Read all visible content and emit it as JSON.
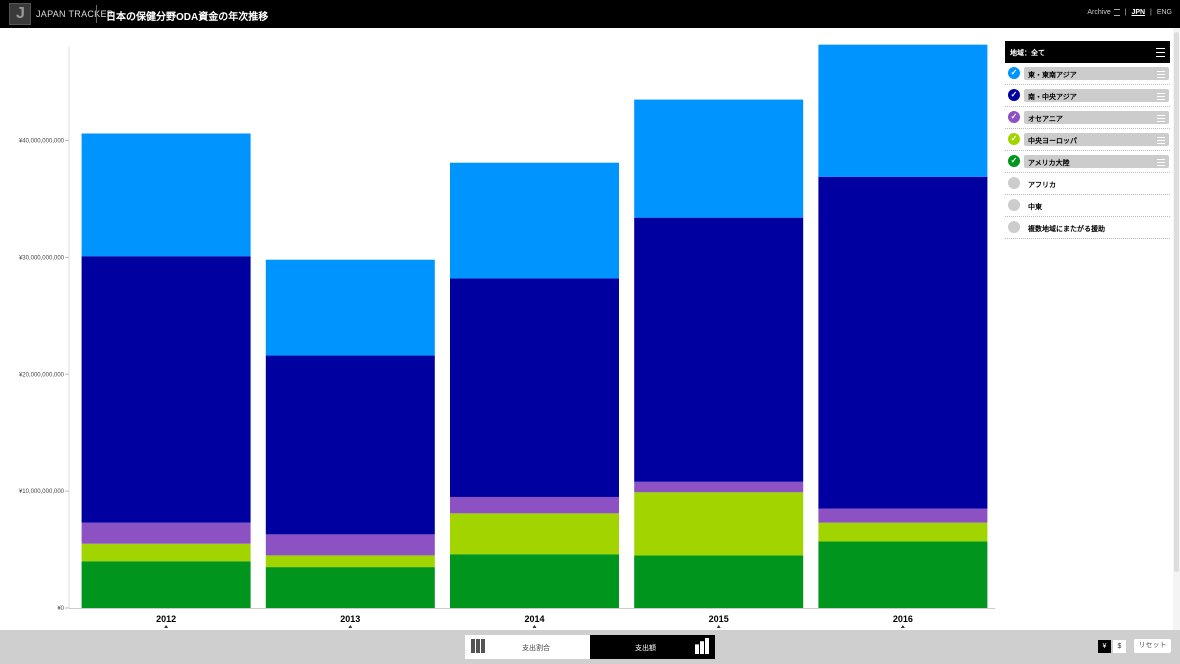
{
  "header": {
    "logo_letter": "J",
    "brand": "JAPAN TRACKER",
    "title": "日本の保健分野ODA資金の年次推移",
    "archive": "Archive",
    "lang_jpn": "JPN",
    "lang_eng": "ENG",
    "sep": "|"
  },
  "panel": {
    "title": "地域：全て",
    "regions": [
      {
        "label": "東・東南アジア",
        "selected": true,
        "color": "#0094ff"
      },
      {
        "label": "南・中央アジア",
        "selected": true,
        "color": "#0000a0"
      },
      {
        "label": "オセアニア",
        "selected": true,
        "color": "#8c52c4"
      },
      {
        "label": "中央ヨーロッパ",
        "selected": true,
        "color": "#a2d400"
      },
      {
        "label": "アメリカ大陸",
        "selected": true,
        "color": "#00961e"
      },
      {
        "label": "アフリカ",
        "selected": false,
        "color": "#cccccc"
      },
      {
        "label": "中東",
        "selected": false,
        "color": "#cccccc"
      },
      {
        "label": "複数地域にまたがる援助",
        "selected": false,
        "color": "#cccccc"
      }
    ]
  },
  "bottom": {
    "toggle_left": "支出割合",
    "toggle_right": "支出額",
    "currency_yen": "¥",
    "currency_usd": "$",
    "reset": "リセット"
  },
  "chart_data": {
    "type": "bar",
    "stacked": true,
    "categories": [
      "2012",
      "2013",
      "2014",
      "2015",
      "2016"
    ],
    "series": [
      {
        "name": "アメリカ大陸",
        "color": "#00961e",
        "values": [
          4000000000,
          3500000000,
          4600000000,
          4500000000,
          5700000000
        ]
      },
      {
        "name": "中央ヨーロッパ",
        "color": "#a2d400",
        "values": [
          1500000000,
          1000000000,
          3500000000,
          5400000000,
          1600000000
        ]
      },
      {
        "name": "オセアニア",
        "color": "#8c52c4",
        "values": [
          1800000000,
          1800000000,
          1400000000,
          900000000,
          1200000000
        ]
      },
      {
        "name": "南・中央アジア",
        "color": "#0000a0",
        "values": [
          22800000000,
          15300000000,
          18700000000,
          22600000000,
          28400000000
        ]
      },
      {
        "name": "東・東南アジア",
        "color": "#0094ff",
        "values": [
          10500000000,
          8200000000,
          9900000000,
          10100000000,
          11300000000
        ]
      }
    ],
    "yticks": [
      "¥0",
      "¥10,000,000,000",
      "¥20,000,000,000",
      "¥30,000,000,000",
      "¥40,000,000,000"
    ],
    "ytick_values": [
      0,
      10000000000,
      20000000000,
      30000000000,
      40000000000
    ],
    "ylim": [
      0,
      48000000000
    ],
    "grid": false,
    "legend": "right panel"
  }
}
